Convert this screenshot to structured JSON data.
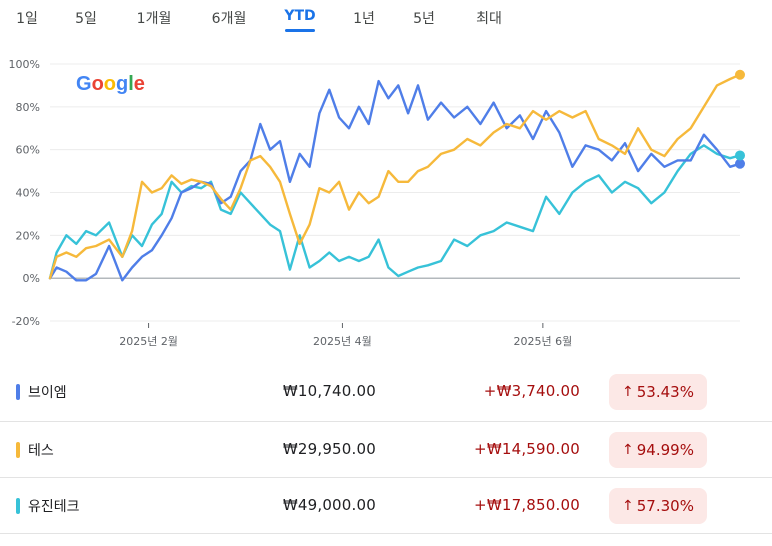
{
  "tabs": [
    {
      "label": "1일",
      "active": false
    },
    {
      "label": "5일",
      "active": false
    },
    {
      "label": "1개월",
      "active": false
    },
    {
      "label": "6개월",
      "active": false
    },
    {
      "label": "YTD",
      "active": true
    },
    {
      "label": "1년",
      "active": false
    },
    {
      "label": "5년",
      "active": false
    },
    {
      "label": "최대",
      "active": false
    }
  ],
  "logo": {
    "text": "Google",
    "colors": [
      "#4285f4",
      "#ea4335",
      "#fbbc05",
      "#4285f4",
      "#34a853",
      "#ea4335"
    ]
  },
  "chart_data": {
    "type": "line",
    "title": "",
    "xlabel": "",
    "ylabel": "",
    "x_range": [
      "2025-01-02",
      "2025-07-31"
    ],
    "x_ticks": [
      {
        "date": "2025-02-01",
        "label": "2025년 2월"
      },
      {
        "date": "2025-04-01",
        "label": "2025년 4월"
      },
      {
        "date": "2025-06-01",
        "label": "2025년 6월"
      }
    ],
    "ylim": [
      -20,
      100
    ],
    "y_ticks": [
      -20,
      0,
      20,
      40,
      60,
      80,
      100
    ],
    "y_tick_labels": [
      "-20%",
      "0%",
      "20%",
      "40%",
      "60%",
      "80%",
      "100%"
    ],
    "grid": true,
    "series": [
      {
        "name": "브이엠",
        "color": "#4f7ee8",
        "points": [
          [
            "2025-01-02",
            0
          ],
          [
            "2025-01-04",
            5
          ],
          [
            "2025-01-07",
            3
          ],
          [
            "2025-01-10",
            -1
          ],
          [
            "2025-01-13",
            -1
          ],
          [
            "2025-01-16",
            2
          ],
          [
            "2025-01-20",
            15
          ],
          [
            "2025-01-24",
            -1
          ],
          [
            "2025-01-27",
            5
          ],
          [
            "2025-01-30",
            10
          ],
          [
            "2025-02-02",
            13
          ],
          [
            "2025-02-05",
            20
          ],
          [
            "2025-02-08",
            28
          ],
          [
            "2025-02-11",
            40
          ],
          [
            "2025-02-14",
            42
          ],
          [
            "2025-02-17",
            45
          ],
          [
            "2025-02-20",
            44
          ],
          [
            "2025-02-23",
            35
          ],
          [
            "2025-02-26",
            38
          ],
          [
            "2025-03-01",
            50
          ],
          [
            "2025-03-04",
            55
          ],
          [
            "2025-03-07",
            72
          ],
          [
            "2025-03-10",
            60
          ],
          [
            "2025-03-13",
            64
          ],
          [
            "2025-03-16",
            45
          ],
          [
            "2025-03-19",
            58
          ],
          [
            "2025-03-22",
            52
          ],
          [
            "2025-03-25",
            77
          ],
          [
            "2025-03-28",
            88
          ],
          [
            "2025-03-31",
            75
          ],
          [
            "2025-04-03",
            70
          ],
          [
            "2025-04-06",
            80
          ],
          [
            "2025-04-09",
            72
          ],
          [
            "2025-04-12",
            92
          ],
          [
            "2025-04-15",
            84
          ],
          [
            "2025-04-18",
            90
          ],
          [
            "2025-04-21",
            77
          ],
          [
            "2025-04-24",
            90
          ],
          [
            "2025-04-27",
            74
          ],
          [
            "2025-05-01",
            82
          ],
          [
            "2025-05-05",
            75
          ],
          [
            "2025-05-09",
            80
          ],
          [
            "2025-05-13",
            72
          ],
          [
            "2025-05-17",
            82
          ],
          [
            "2025-05-21",
            70
          ],
          [
            "2025-05-25",
            76
          ],
          [
            "2025-05-29",
            65
          ],
          [
            "2025-06-02",
            78
          ],
          [
            "2025-06-06",
            68
          ],
          [
            "2025-06-10",
            52
          ],
          [
            "2025-06-14",
            62
          ],
          [
            "2025-06-18",
            60
          ],
          [
            "2025-06-22",
            55
          ],
          [
            "2025-06-26",
            63
          ],
          [
            "2025-06-30",
            50
          ],
          [
            "2025-07-04",
            58
          ],
          [
            "2025-07-08",
            52
          ],
          [
            "2025-07-12",
            55
          ],
          [
            "2025-07-16",
            55
          ],
          [
            "2025-07-20",
            67
          ],
          [
            "2025-07-24",
            60
          ],
          [
            "2025-07-28",
            52
          ],
          [
            "2025-07-31",
            53.43
          ]
        ]
      },
      {
        "name": "테스",
        "color": "#f6b93b",
        "points": [
          [
            "2025-01-02",
            0
          ],
          [
            "2025-01-04",
            10
          ],
          [
            "2025-01-07",
            12
          ],
          [
            "2025-01-10",
            10
          ],
          [
            "2025-01-13",
            14
          ],
          [
            "2025-01-16",
            15
          ],
          [
            "2025-01-20",
            18
          ],
          [
            "2025-01-24",
            10
          ],
          [
            "2025-01-27",
            22
          ],
          [
            "2025-01-30",
            45
          ],
          [
            "2025-02-02",
            40
          ],
          [
            "2025-02-05",
            42
          ],
          [
            "2025-02-08",
            48
          ],
          [
            "2025-02-11",
            44
          ],
          [
            "2025-02-14",
            46
          ],
          [
            "2025-02-17",
            45
          ],
          [
            "2025-02-20",
            43
          ],
          [
            "2025-02-23",
            37
          ],
          [
            "2025-02-26",
            32
          ],
          [
            "2025-03-01",
            42
          ],
          [
            "2025-03-04",
            55
          ],
          [
            "2025-03-07",
            57
          ],
          [
            "2025-03-10",
            52
          ],
          [
            "2025-03-13",
            45
          ],
          [
            "2025-03-16",
            30
          ],
          [
            "2025-03-19",
            16
          ],
          [
            "2025-03-22",
            25
          ],
          [
            "2025-03-25",
            42
          ],
          [
            "2025-03-28",
            40
          ],
          [
            "2025-03-31",
            45
          ],
          [
            "2025-04-03",
            32
          ],
          [
            "2025-04-06",
            40
          ],
          [
            "2025-04-09",
            35
          ],
          [
            "2025-04-12",
            38
          ],
          [
            "2025-04-15",
            50
          ],
          [
            "2025-04-18",
            45
          ],
          [
            "2025-04-21",
            45
          ],
          [
            "2025-04-24",
            50
          ],
          [
            "2025-04-27",
            52
          ],
          [
            "2025-05-01",
            58
          ],
          [
            "2025-05-05",
            60
          ],
          [
            "2025-05-09",
            65
          ],
          [
            "2025-05-13",
            62
          ],
          [
            "2025-05-17",
            68
          ],
          [
            "2025-05-21",
            72
          ],
          [
            "2025-05-25",
            70
          ],
          [
            "2025-05-29",
            78
          ],
          [
            "2025-06-02",
            74
          ],
          [
            "2025-06-06",
            78
          ],
          [
            "2025-06-10",
            75
          ],
          [
            "2025-06-14",
            78
          ],
          [
            "2025-06-18",
            65
          ],
          [
            "2025-06-22",
            62
          ],
          [
            "2025-06-26",
            58
          ],
          [
            "2025-06-30",
            70
          ],
          [
            "2025-07-04",
            60
          ],
          [
            "2025-07-08",
            57
          ],
          [
            "2025-07-12",
            65
          ],
          [
            "2025-07-16",
            70
          ],
          [
            "2025-07-20",
            80
          ],
          [
            "2025-07-24",
            90
          ],
          [
            "2025-07-28",
            93
          ],
          [
            "2025-07-31",
            94.99
          ]
        ]
      },
      {
        "name": "유진테크",
        "color": "#37c2d8",
        "points": [
          [
            "2025-01-02",
            0
          ],
          [
            "2025-01-04",
            12
          ],
          [
            "2025-01-07",
            20
          ],
          [
            "2025-01-10",
            16
          ],
          [
            "2025-01-13",
            22
          ],
          [
            "2025-01-16",
            20
          ],
          [
            "2025-01-20",
            26
          ],
          [
            "2025-01-24",
            10
          ],
          [
            "2025-01-27",
            20
          ],
          [
            "2025-01-30",
            15
          ],
          [
            "2025-02-02",
            25
          ],
          [
            "2025-02-05",
            30
          ],
          [
            "2025-02-08",
            45
          ],
          [
            "2025-02-11",
            40
          ],
          [
            "2025-02-14",
            43
          ],
          [
            "2025-02-17",
            42
          ],
          [
            "2025-02-20",
            45
          ],
          [
            "2025-02-23",
            32
          ],
          [
            "2025-02-26",
            30
          ],
          [
            "2025-03-01",
            40
          ],
          [
            "2025-03-04",
            35
          ],
          [
            "2025-03-07",
            30
          ],
          [
            "2025-03-10",
            25
          ],
          [
            "2025-03-13",
            22
          ],
          [
            "2025-03-16",
            4
          ],
          [
            "2025-03-19",
            20
          ],
          [
            "2025-03-22",
            5
          ],
          [
            "2025-03-25",
            8
          ],
          [
            "2025-03-28",
            12
          ],
          [
            "2025-03-31",
            8
          ],
          [
            "2025-04-03",
            10
          ],
          [
            "2025-04-06",
            8
          ],
          [
            "2025-04-09",
            10
          ],
          [
            "2025-04-12",
            18
          ],
          [
            "2025-04-15",
            5
          ],
          [
            "2025-04-18",
            1
          ],
          [
            "2025-04-21",
            3
          ],
          [
            "2025-04-24",
            5
          ],
          [
            "2025-04-27",
            6
          ],
          [
            "2025-05-01",
            8
          ],
          [
            "2025-05-05",
            18
          ],
          [
            "2025-05-09",
            15
          ],
          [
            "2025-05-13",
            20
          ],
          [
            "2025-05-17",
            22
          ],
          [
            "2025-05-21",
            26
          ],
          [
            "2025-05-25",
            24
          ],
          [
            "2025-05-29",
            22
          ],
          [
            "2025-06-02",
            38
          ],
          [
            "2025-06-06",
            30
          ],
          [
            "2025-06-10",
            40
          ],
          [
            "2025-06-14",
            45
          ],
          [
            "2025-06-18",
            48
          ],
          [
            "2025-06-22",
            40
          ],
          [
            "2025-06-26",
            45
          ],
          [
            "2025-06-30",
            42
          ],
          [
            "2025-07-04",
            35
          ],
          [
            "2025-07-08",
            40
          ],
          [
            "2025-07-12",
            50
          ],
          [
            "2025-07-16",
            58
          ],
          [
            "2025-07-20",
            62
          ],
          [
            "2025-07-24",
            58
          ],
          [
            "2025-07-28",
            56
          ],
          [
            "2025-07-31",
            57.3
          ]
        ]
      }
    ]
  },
  "rows": [
    {
      "name": "브이엠",
      "color": "#4f7ee8",
      "price": "₩10,740.00",
      "change": "+₩3,740.00",
      "arrow": "↑",
      "pct": "53.43%"
    },
    {
      "name": "테스",
      "color": "#f6b93b",
      "price": "₩29,950.00",
      "change": "+₩14,590.00",
      "arrow": "↑",
      "pct": "94.99%"
    },
    {
      "name": "유진테크",
      "color": "#37c2d8",
      "price": "₩49,000.00",
      "change": "+₩17,850.00",
      "arrow": "↑",
      "pct": "57.30%"
    }
  ]
}
